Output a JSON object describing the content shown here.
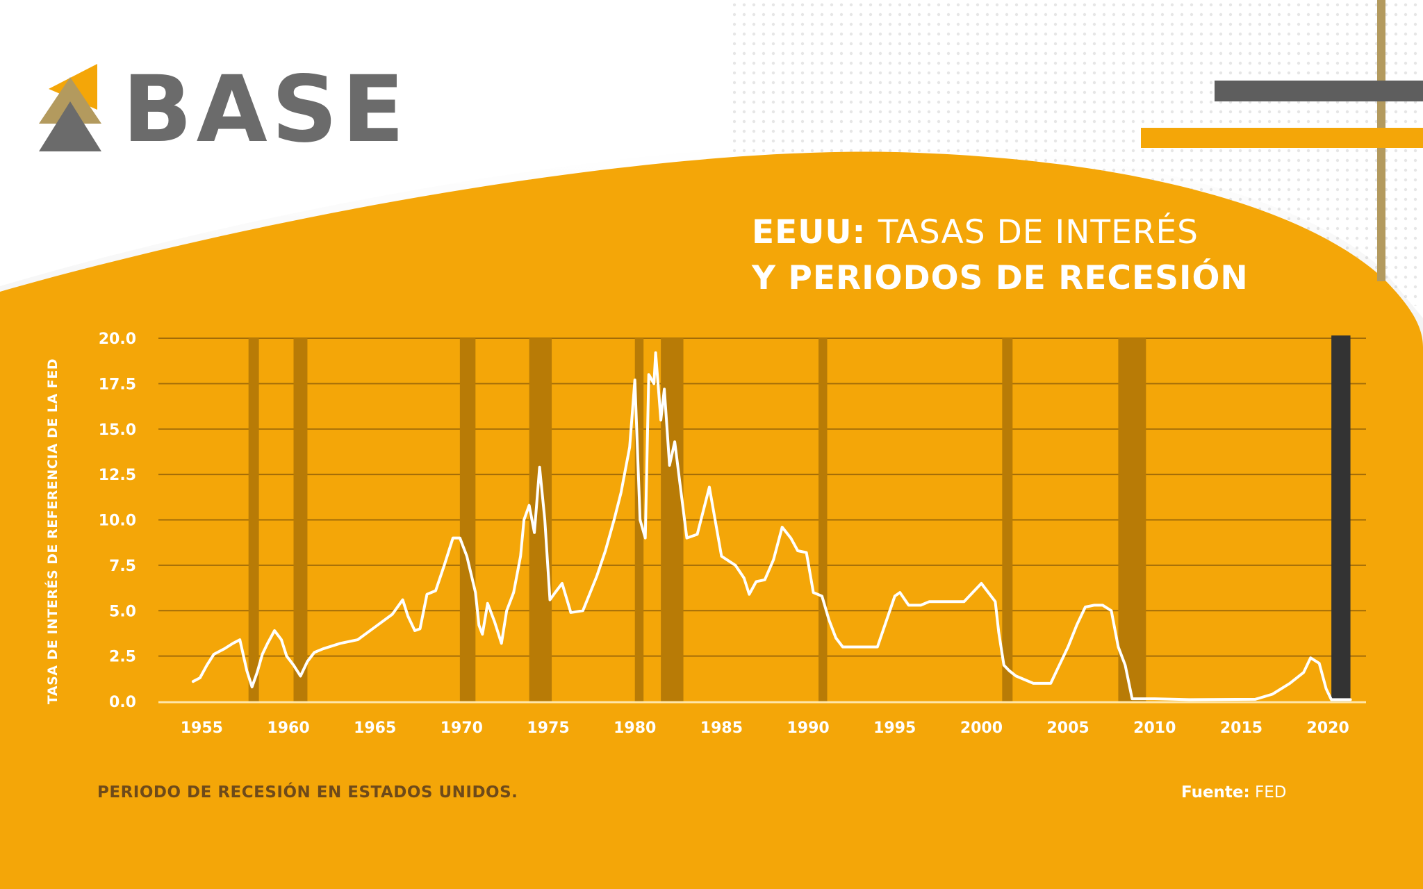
{
  "brand": {
    "name": "BASE"
  },
  "title": {
    "bold": "EEUU:",
    "rest": "TASAS DE INTERÉS",
    "line2": "Y PERIODOS DE RECESIÓN"
  },
  "legend": {
    "recession_label": "PERIODO DE RECESIÓN EN ESTADOS UNIDOS."
  },
  "source": {
    "label": "Fuente:",
    "value": "FED"
  },
  "colors": {
    "background": "#f4a608",
    "recession": "#b87b06",
    "latest_bar": "#333333",
    "line": "#ffffff",
    "grid": "#a26c08",
    "logo_gray": "#6b6b6b",
    "logo_gold": "#b39a5e",
    "logo_orange": "#f4a608"
  },
  "chart_data": {
    "type": "line",
    "title": "EEUU: TASAS DE INTERÉS Y PERIODOS DE RECESIÓN",
    "ylabel": "TASA DE INTERÉS DE REFERENCIA DE LA FED",
    "xlabel": "",
    "xlim": [
      1952.5,
      2022.2
    ],
    "ylim": [
      0,
      20
    ],
    "x_ticks": [
      1955,
      1960,
      1965,
      1970,
      1975,
      1980,
      1985,
      1990,
      1995,
      2000,
      2005,
      2010,
      2015,
      2020
    ],
    "y_ticks": [
      "0.0",
      "2.5",
      "5.0",
      "7.5",
      "10.0",
      "12.5",
      "15.0",
      "17.5",
      "20.0"
    ],
    "grid": true,
    "recessions": [
      [
        1957.7,
        1958.3
      ],
      [
        1960.3,
        1961.1
      ],
      [
        1969.9,
        1970.8
      ],
      [
        1973.9,
        1975.2
      ],
      [
        1980.0,
        1980.5
      ],
      [
        1981.5,
        1982.8
      ],
      [
        1990.6,
        1991.1
      ],
      [
        2001.2,
        2001.8
      ],
      [
        2007.9,
        2009.5
      ]
    ],
    "latest_period": [
      2020.2,
      2021.3
    ],
    "series": [
      {
        "x": [
          1954.5,
          1954.9,
          1955.3,
          1955.7,
          1956.3,
          1956.8,
          1957.2,
          1957.6,
          1957.9,
          1958.2,
          1958.5,
          1958.8,
          1959.2,
          1959.6,
          1959.9,
          1960.3,
          1960.7,
          1961.1,
          1961.5,
          1962.0,
          1963.0,
          1964.0,
          1965.0,
          1966.0,
          1966.6,
          1966.9,
          1967.3,
          1967.6,
          1968.0,
          1968.5,
          1969.0,
          1969.5,
          1969.9,
          1970.3,
          1970.8,
          1971.0,
          1971.2,
          1971.5,
          1971.9,
          1972.3,
          1972.6,
          1973.0,
          1973.4,
          1973.6,
          1973.9,
          1974.2,
          1974.5,
          1974.8,
          1975.1,
          1975.4,
          1975.8,
          1976.3,
          1977.0,
          1977.8,
          1978.3,
          1978.8,
          1979.2,
          1979.7,
          1980.0,
          1980.3,
          1980.6,
          1980.8,
          1981.1,
          1981.2,
          1981.5,
          1981.7,
          1982.0,
          1982.3,
          1982.6,
          1983.0,
          1983.6,
          1984.3,
          1985.0,
          1985.8,
          1986.3,
          1986.6,
          1987.0,
          1987.5,
          1988.0,
          1988.5,
          1989.0,
          1989.4,
          1989.9,
          1990.3,
          1990.8,
          1991.2,
          1991.6,
          1992.0,
          1992.5,
          1993.0,
          1994.0,
          1995.0,
          1995.3,
          1995.8,
          1996.5,
          1997.0,
          1998.0,
          1999.0,
          2000.0,
          2000.8,
          2001.0,
          2001.3,
          2001.6,
          2002.0,
          2003.0,
          2004.0,
          2004.5,
          2005.0,
          2005.5,
          2006.0,
          2006.5,
          2007.0,
          2007.5,
          2007.9,
          2008.3,
          2008.7,
          2009.0,
          2009.3,
          2010.0,
          2012.0,
          2015.8,
          2016.8,
          2017.8,
          2018.6,
          2019.0,
          2019.5,
          2019.9,
          2020.2,
          2021.3
        ],
        "values": [
          1.1,
          1.3,
          2.0,
          2.6,
          2.9,
          3.2,
          3.4,
          1.7,
          0.8,
          1.6,
          2.6,
          3.2,
          3.9,
          3.4,
          2.5,
          2.0,
          1.4,
          2.2,
          2.7,
          2.9,
          3.2,
          3.4,
          4.1,
          4.8,
          5.6,
          4.7,
          3.9,
          4.0,
          5.9,
          6.1,
          7.5,
          9.0,
          9.0,
          8.0,
          6.0,
          4.2,
          3.7,
          5.4,
          4.4,
          3.2,
          5.0,
          6.0,
          8.0,
          10.0,
          10.8,
          9.3,
          12.9,
          10.0,
          5.6,
          6.0,
          6.5,
          4.9,
          5.0,
          6.9,
          8.3,
          10.0,
          11.5,
          14.0,
          17.7,
          10.0,
          9.0,
          18.0,
          17.5,
          19.2,
          15.5,
          17.2,
          13.0,
          14.3,
          12.0,
          9.0,
          9.2,
          11.8,
          8.0,
          7.5,
          6.8,
          5.9,
          6.6,
          6.7,
          7.8,
          9.6,
          9.0,
          8.3,
          8.2,
          6.0,
          5.8,
          4.5,
          3.5,
          3.0,
          3.0,
          3.0,
          3.0,
          5.8,
          6.0,
          5.3,
          5.3,
          5.5,
          5.5,
          5.5,
          6.5,
          5.5,
          3.8,
          2.0,
          1.7,
          1.4,
          1.0,
          1.0,
          2.0,
          3.0,
          4.2,
          5.2,
          5.3,
          5.3,
          5.0,
          3.0,
          2.0,
          0.15,
          0.15,
          0.15,
          0.15,
          0.1,
          0.12,
          0.4,
          1.0,
          1.6,
          2.4,
          2.1,
          0.7,
          0.1,
          0.1
        ]
      }
    ]
  }
}
